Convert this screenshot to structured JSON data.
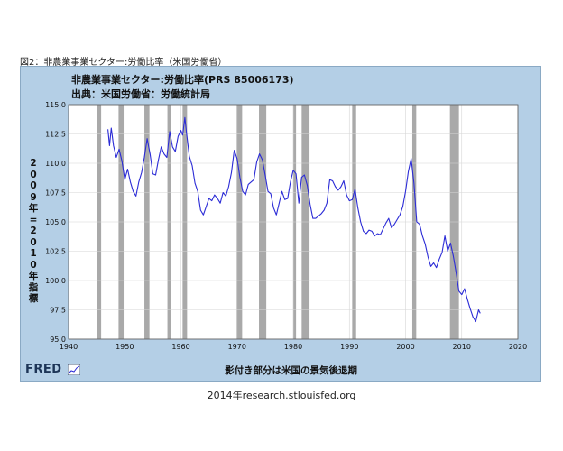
{
  "figure_caption": "図2：非農業事業セクター:労働比率（米国労働省）",
  "source_note": "2014年research.stlouisfed.org",
  "logo_text": "FRED",
  "colors": {
    "line": "#2b2bd6",
    "recession": "#a9a9a9",
    "frame": "#b4cfe6",
    "plot_bg": "#ffffff"
  },
  "chart_data": {
    "type": "line",
    "title": "非農業事業セクター:労働比率(PRS 85006173)",
    "subtitle": "出典：米国労働省：労働統計局",
    "ylabel": "2009年=2010年指標",
    "xlabel": "影付き部分は米国の景気後退期",
    "xlim": [
      1940,
      2020
    ],
    "ylim": [
      95.0,
      115.0
    ],
    "x_ticks": [
      1940,
      1950,
      1960,
      1970,
      1980,
      1990,
      2000,
      2010,
      2020
    ],
    "y_ticks": [
      95.0,
      97.5,
      100.0,
      102.5,
      105.0,
      107.5,
      110.0,
      112.5,
      115.0
    ],
    "grid": true,
    "recessions": [
      [
        1945.1,
        1945.8
      ],
      [
        1948.9,
        1949.8
      ],
      [
        1953.5,
        1954.4
      ],
      [
        1957.6,
        1958.3
      ],
      [
        1960.3,
        1961.1
      ],
      [
        1969.9,
        1970.9
      ],
      [
        1973.9,
        1975.2
      ],
      [
        1980.0,
        1980.5
      ],
      [
        1981.5,
        1982.9
      ],
      [
        1990.5,
        1991.2
      ],
      [
        2001.2,
        2001.9
      ],
      [
        2007.9,
        2009.5
      ]
    ],
    "series": [
      {
        "x": [
          1947.0,
          1947.3,
          1947.6,
          1948.0,
          1948.5,
          1949.0,
          1949.5,
          1950.0,
          1950.5,
          1951.0,
          1951.5,
          1952.0,
          1952.5,
          1953.0,
          1953.5,
          1954.0,
          1954.5,
          1955.0,
          1955.5,
          1956.0,
          1956.5,
          1957.0,
          1957.5,
          1958.0,
          1958.5,
          1959.0,
          1959.5,
          1960.0,
          1960.3,
          1960.7,
          1961.0,
          1961.5,
          1962.0,
          1962.5,
          1963.0,
          1963.5,
          1964.0,
          1964.5,
          1965.0,
          1965.5,
          1966.0,
          1966.5,
          1967.0,
          1967.5,
          1968.0,
          1968.5,
          1969.0,
          1969.5,
          1970.0,
          1970.5,
          1971.0,
          1971.5,
          1972.0,
          1972.5,
          1973.0,
          1973.5,
          1974.0,
          1974.5,
          1975.0,
          1975.5,
          1976.0,
          1976.5,
          1977.0,
          1977.5,
          1978.0,
          1978.5,
          1979.0,
          1979.5,
          1980.0,
          1980.5,
          1981.0,
          1981.5,
          1982.0,
          1982.5,
          1983.0,
          1983.5,
          1984.0,
          1984.5,
          1985.0,
          1985.5,
          1986.0,
          1986.5,
          1987.0,
          1987.5,
          1988.0,
          1988.5,
          1989.0,
          1989.5,
          1990.0,
          1990.5,
          1991.0,
          1991.5,
          1992.0,
          1992.5,
          1993.0,
          1993.5,
          1994.0,
          1994.5,
          1995.0,
          1995.5,
          1996.0,
          1996.5,
          1997.0,
          1997.5,
          1998.0,
          1998.5,
          1999.0,
          1999.5,
          2000.0,
          2000.5,
          2001.0,
          2001.5,
          2002.0,
          2002.5,
          2003.0,
          2003.5,
          2004.0,
          2004.5,
          2005.0,
          2005.5,
          2006.0,
          2006.5,
          2007.0,
          2007.5,
          2008.0,
          2008.5,
          2009.0,
          2009.5,
          2010.0,
          2010.5,
          2011.0,
          2011.5,
          2012.0,
          2012.5,
          2013.0,
          2013.3
        ],
        "values": [
          112.9,
          111.5,
          113.0,
          111.5,
          110.5,
          111.2,
          110.2,
          108.6,
          109.5,
          108.4,
          107.6,
          107.2,
          108.4,
          109.2,
          110.5,
          112.1,
          110.8,
          109.1,
          109.0,
          110.3,
          111.4,
          110.8,
          110.5,
          112.7,
          111.4,
          111.0,
          112.3,
          112.8,
          112.4,
          113.9,
          112.6,
          110.6,
          109.8,
          108.3,
          107.6,
          106.0,
          105.6,
          106.3,
          107.0,
          106.8,
          107.3,
          107.0,
          106.6,
          107.5,
          107.2,
          108.0,
          109.2,
          111.1,
          110.4,
          108.8,
          107.6,
          107.3,
          108.2,
          108.4,
          108.6,
          110.1,
          110.8,
          110.3,
          109.0,
          107.6,
          107.4,
          106.2,
          105.6,
          106.6,
          107.6,
          106.9,
          107.0,
          108.4,
          109.4,
          109.1,
          106.6,
          108.8,
          109.0,
          108.1,
          106.5,
          105.3,
          105.3,
          105.5,
          105.7,
          106.0,
          106.6,
          108.6,
          108.5,
          108.0,
          107.7,
          108.0,
          108.5,
          107.3,
          106.8,
          106.9,
          107.8,
          106.2,
          105.0,
          104.2,
          104.0,
          104.3,
          104.2,
          103.8,
          104.0,
          103.9,
          104.4,
          104.9,
          105.3,
          104.5,
          104.8,
          105.2,
          105.6,
          106.3,
          107.6,
          109.3,
          110.4,
          108.3,
          105.0,
          104.8,
          103.8,
          103.1,
          102.0,
          101.2,
          101.5,
          101.1,
          101.8,
          102.4,
          103.8,
          102.5,
          103.2,
          102.1,
          100.7,
          99.1,
          98.8,
          99.3,
          98.4,
          97.6,
          96.9,
          96.5,
          97.5,
          97.2
        ]
      }
    ]
  }
}
